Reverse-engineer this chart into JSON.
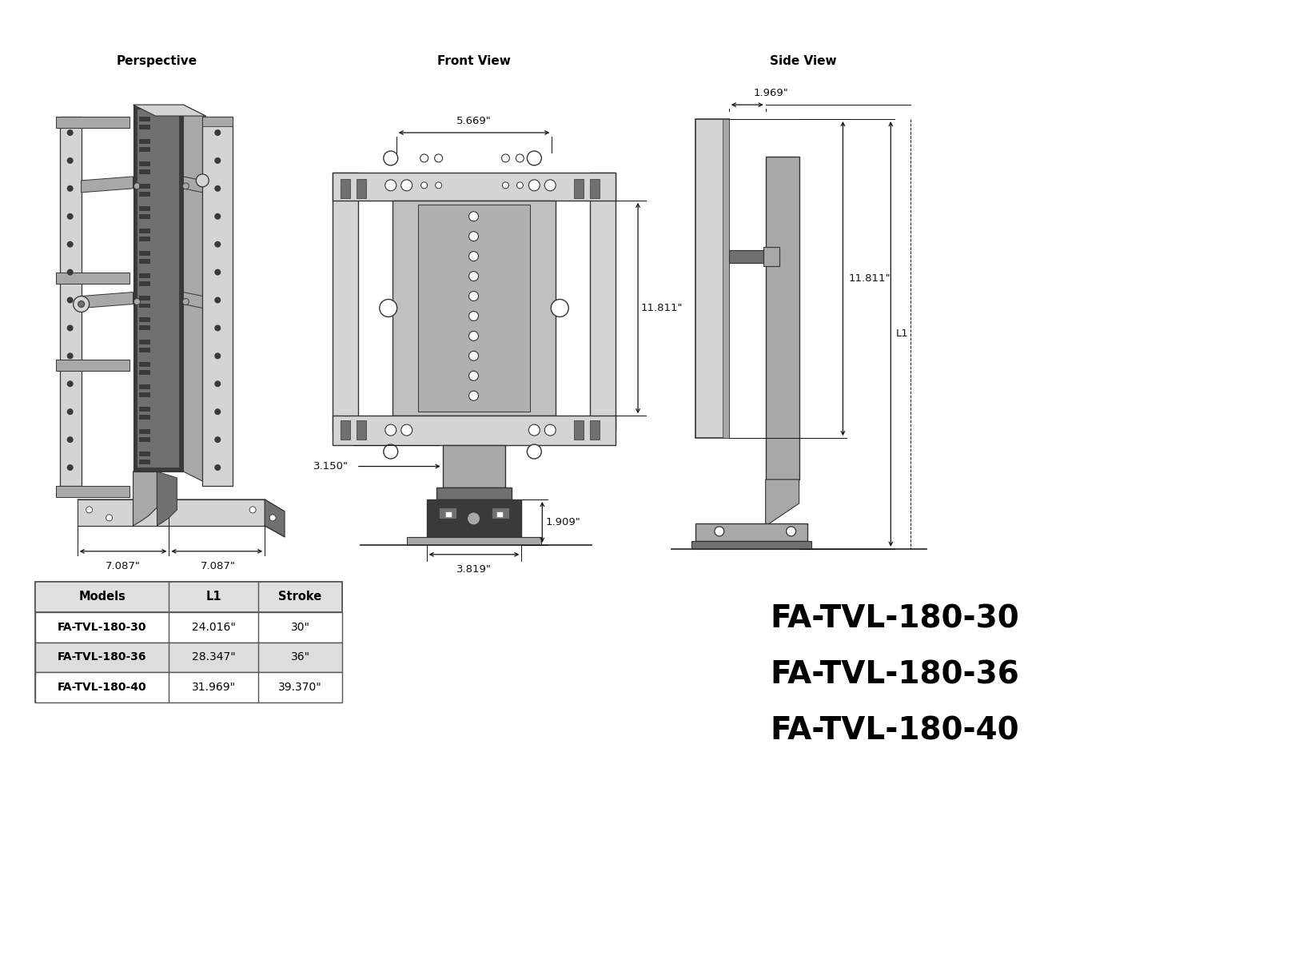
{
  "bg_color": "#ffffff",
  "perspective_label": "Perspective",
  "front_view_label": "Front View",
  "side_view_label": "Side View",
  "dim_5669": "5.669\"",
  "dim_11811_front": "11.811\"",
  "dim_3150": "3.150\"",
  "dim_1909": "1.909\"",
  "dim_3819": "3.819\"",
  "dim_7087_left": "7.087\"",
  "dim_7087_right": "7.087\"",
  "dim_1969": "1.969\"",
  "dim_11811_side": "11.811\"",
  "dim_L1": "L1",
  "table_headers": [
    "Models",
    "L1",
    "Stroke"
  ],
  "table_rows": [
    [
      "FA-TVL-180-30",
      "24.016\"",
      "30\""
    ],
    [
      "FA-TVL-180-36",
      "28.347\"",
      "36\""
    ],
    [
      "FA-TVL-180-40",
      "31.969\"",
      "39.370\""
    ]
  ],
  "model_labels": [
    "FA-TVL-180-30",
    "FA-TVL-180-36",
    "FA-TVL-180-40"
  ],
  "lc": "#333333",
  "dc": "#111111",
  "gl": "#d4d4d4",
  "gm": "#a8a8a8",
  "gd": "#707070",
  "gdk": "#3a3a3a",
  "wh": "#ffffff"
}
